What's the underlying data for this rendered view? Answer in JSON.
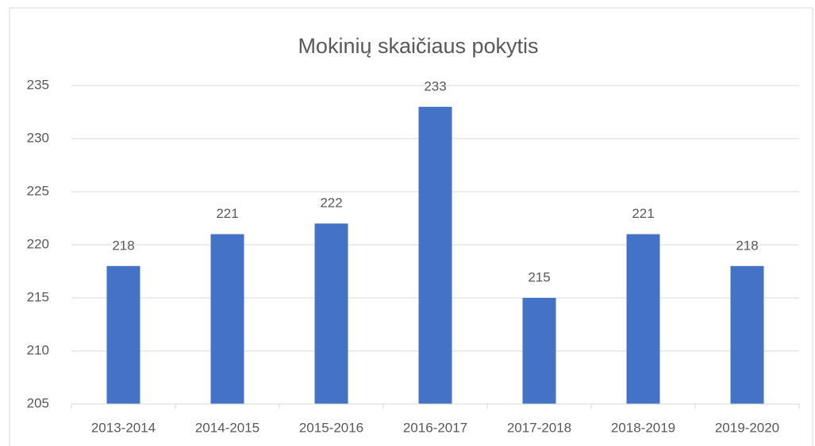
{
  "chart_data": {
    "type": "bar",
    "title": "Mokinių skaičiaus pokytis",
    "categories": [
      "2013-2014",
      "2014-2015",
      "2015-2016",
      "2016-2017",
      "2017-2018",
      "2018-2019",
      "2019-2020"
    ],
    "values": [
      218,
      221,
      222,
      233,
      215,
      221,
      218
    ],
    "color": "#4472c4",
    "ylim": [
      205,
      235
    ],
    "yticks": [
      205,
      210,
      215,
      220,
      225,
      230,
      235
    ],
    "grid": true
  }
}
